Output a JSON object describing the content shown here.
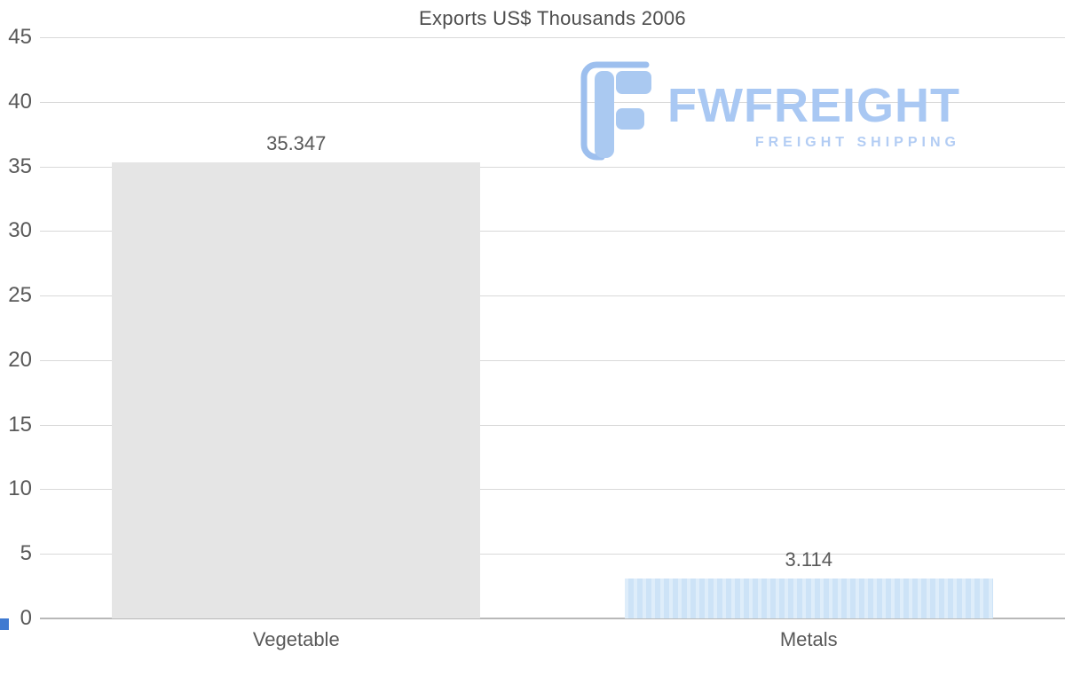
{
  "chart_data": {
    "type": "bar",
    "title": "Exports US$ Thousands 2006",
    "categories": [
      "Vegetable",
      "Metals"
    ],
    "values": [
      35.347,
      3.114
    ],
    "value_labels": [
      "35.347",
      "3.114"
    ],
    "bar_colors": [
      "#e5e5e5",
      "#cde3f7"
    ],
    "bar_striped": [
      false,
      true
    ],
    "xlabel": "",
    "ylabel": "",
    "ylim": [
      0,
      45
    ],
    "yticks": [
      0,
      5,
      10,
      15,
      20,
      25,
      30,
      35,
      40,
      45
    ],
    "grid": "horizontal",
    "legend": "none"
  },
  "watermark": {
    "brand": "FWFREIGHT",
    "tagline": "FREIGHT SHIPPING",
    "color": "#a9c8f3",
    "logo_icon": "fwfreight-f-blocks-icon"
  },
  "colors": {
    "background": "#ffffff",
    "gridline": "#d9d9d9",
    "axis_zero_line": "#b8b8b8",
    "text": "#595959",
    "corner_accent": "#3f7ad1"
  }
}
